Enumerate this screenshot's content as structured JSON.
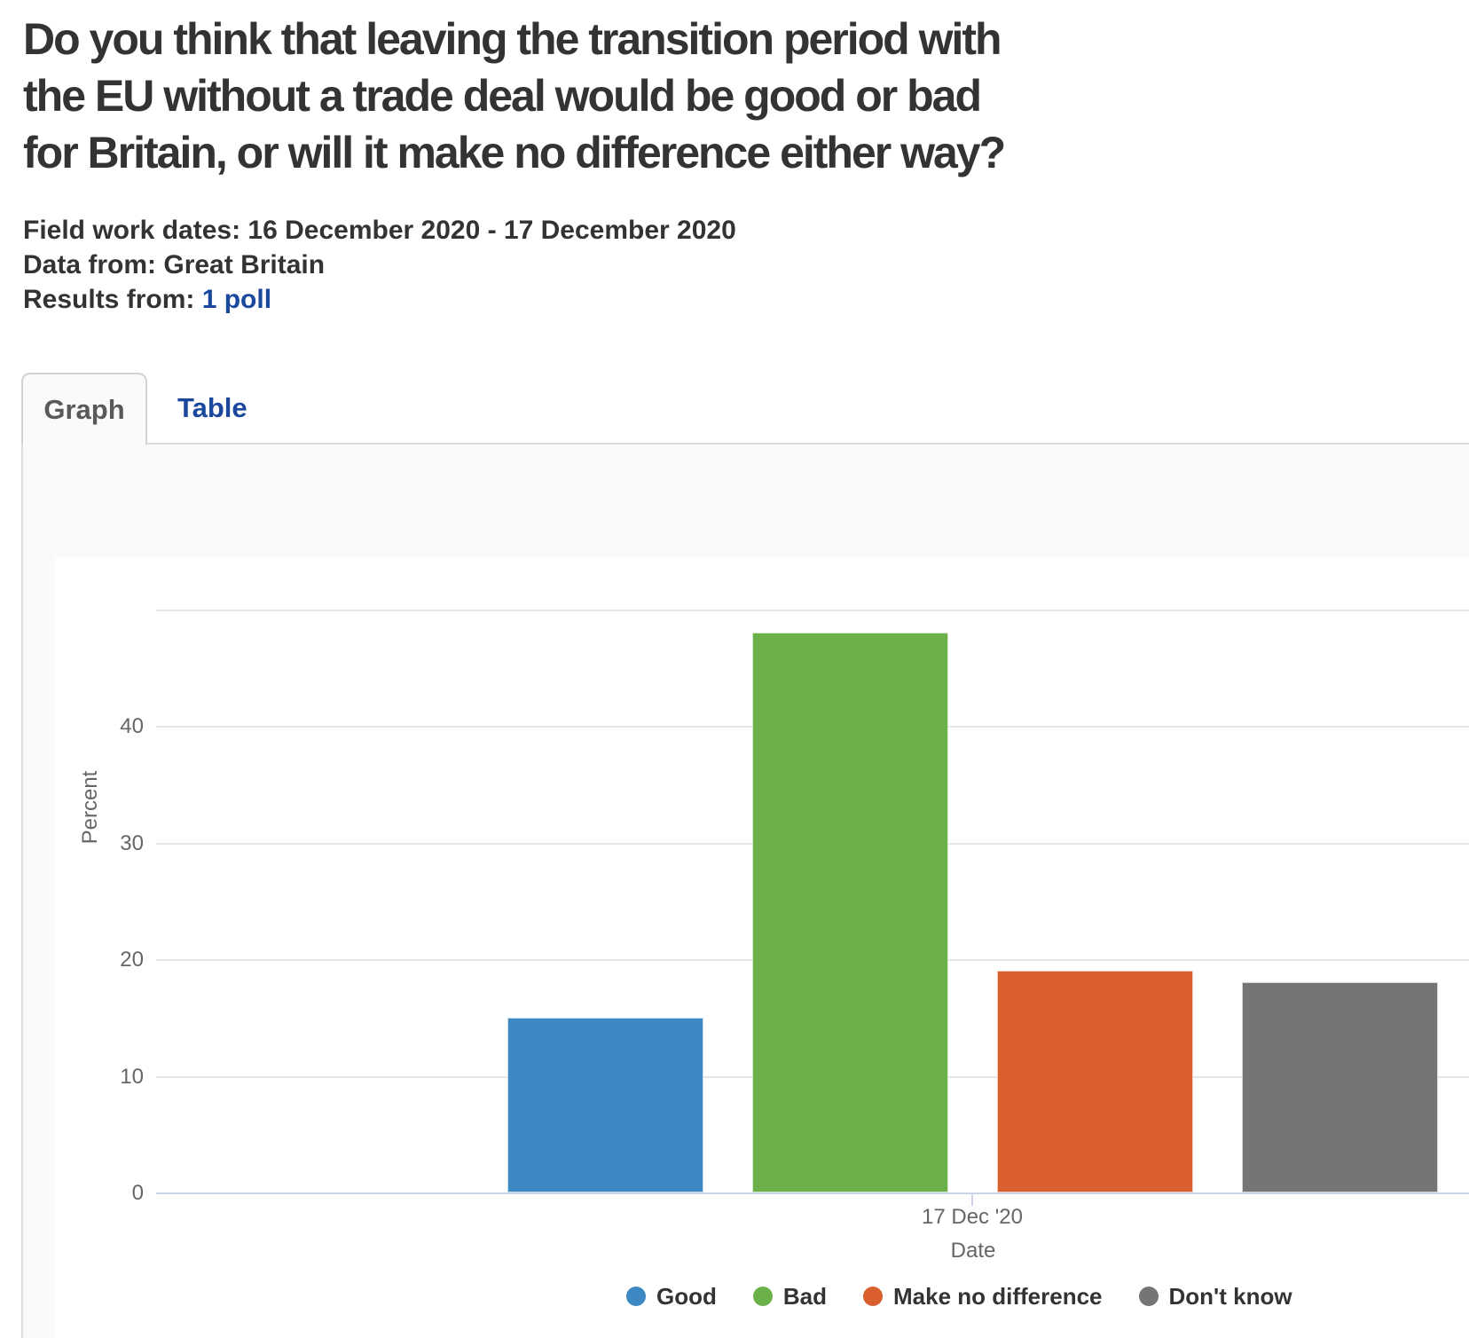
{
  "header": {
    "title_lines": [
      "Do you think that leaving the transition period with",
      "the EU without a trade deal would be good or bad",
      "for Britain, or will it make no difference either way?"
    ],
    "meta": {
      "fieldwork_label": "Field work dates:",
      "fieldwork_value": "16 December 2020 - 17 December 2020",
      "datafrom_label": "Data from:",
      "datafrom_value": "Great Britain",
      "results_label": "Results from:",
      "results_link": "1 poll"
    }
  },
  "tabs": {
    "graph": "Graph",
    "table": "Table"
  },
  "chart_data": {
    "type": "bar",
    "categories": [
      "17 Dec '20"
    ],
    "series": [
      {
        "name": "Good",
        "values": [
          15
        ],
        "color": "#3d89c3"
      },
      {
        "name": "Bad",
        "values": [
          48
        ],
        "color": "#6cb04a"
      },
      {
        "name": "Make no difference",
        "values": [
          19
        ],
        "color": "#d95f2e"
      },
      {
        "name": "Don't know",
        "values": [
          18
        ],
        "color": "#757575"
      }
    ],
    "title": "",
    "xlabel": "Date",
    "ylabel": "Percent",
    "ylim": [
      0,
      50
    ],
    "yticks": [
      0,
      10,
      20,
      30,
      40
    ],
    "grid_values": [
      10,
      20,
      30,
      40,
      50
    ],
    "grid": true,
    "legend_position": "bottom-center"
  },
  "colors": {
    "heading_text": "#333333",
    "link_blue": "#1b489d",
    "tab_inactive_text": "#1b489d",
    "tab_active_text": "#595959",
    "panel_background": "#fafafa",
    "panel_border": "#dddddd",
    "grid_line": "#e6e6e6",
    "axis_line": "#ccd6eb",
    "axis_text": "#666666",
    "bar_good": "#3d89c3",
    "bar_bad": "#6cb04a",
    "bar_make_no_difference": "#d95f2e",
    "bar_dont_know": "#757575"
  }
}
